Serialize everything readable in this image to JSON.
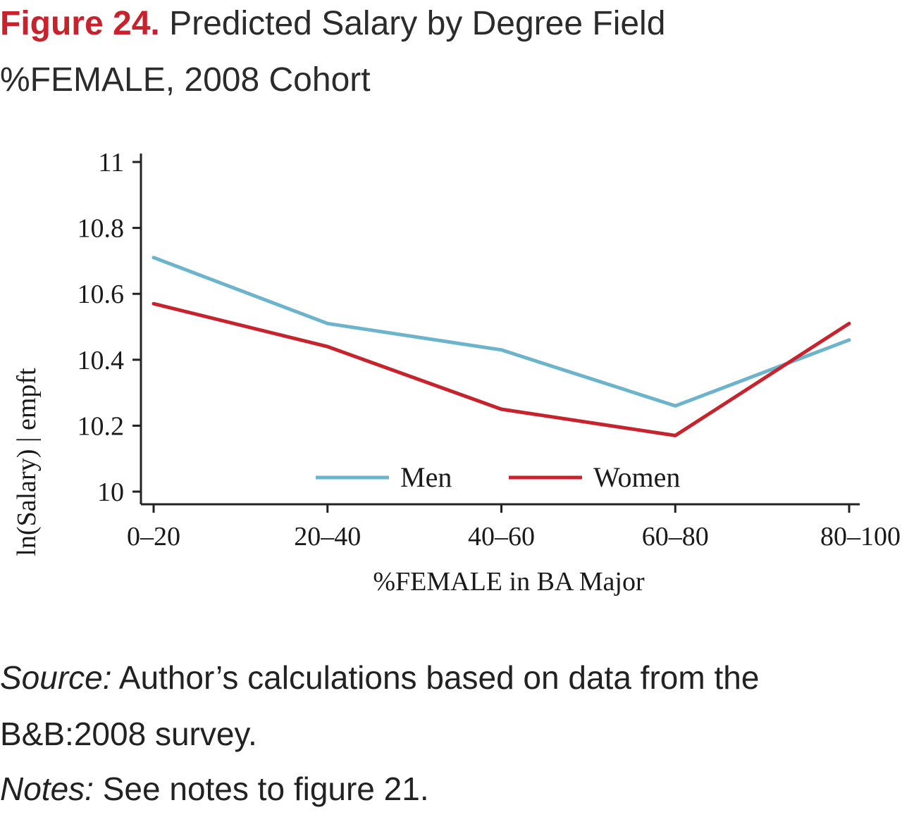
{
  "figure": {
    "label": "Figure 24.",
    "title": " Predicted Salary by Degree Field",
    "subtitle": "%FEMALE, 2008 Cohort"
  },
  "chart_data": {
    "type": "line",
    "categories": [
      "0–20",
      "20–40",
      "40–60",
      "60–80",
      "80–100"
    ],
    "series": [
      {
        "name": "Men",
        "color": "#6cb4cc",
        "values": [
          10.71,
          10.51,
          10.43,
          10.26,
          10.46
        ]
      },
      {
        "name": "Women",
        "color": "#c8232c",
        "values": [
          10.57,
          10.44,
          10.25,
          10.17,
          10.51
        ]
      }
    ],
    "xlabel": "%FEMALE in BA Major",
    "ylabel": "ln(Salary) | empft",
    "ylim": [
      10,
      11
    ],
    "yticks": [
      10,
      10.2,
      10.4,
      10.6,
      10.8,
      11
    ],
    "ytick_labels": [
      "10",
      "10.2",
      "10.4",
      "10.6",
      "10.8",
      "11"
    ],
    "grid": false,
    "legend_position": "bottom-center"
  },
  "caption": {
    "source_label": "Source:",
    "source_text": " Author’s calculations based on data from the B&B:2008 survey.",
    "notes_label": "Notes:",
    "notes_text": " See notes to figure 21."
  }
}
